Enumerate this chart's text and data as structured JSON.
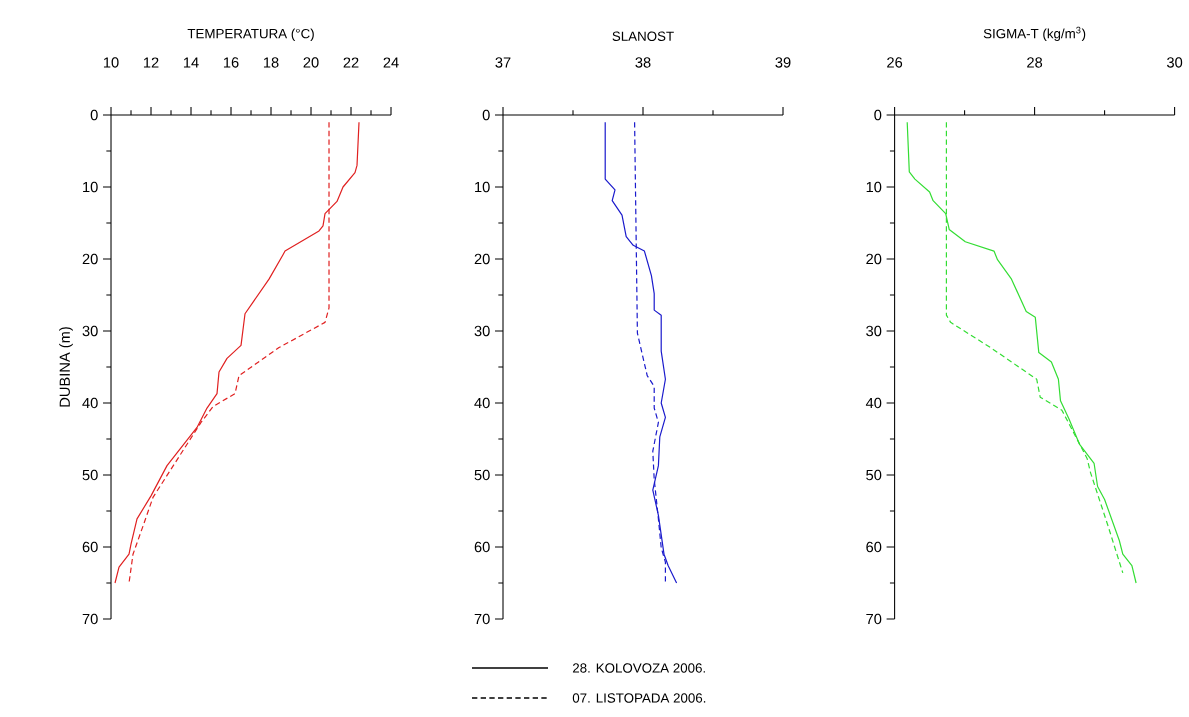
{
  "chart_data": [
    {
      "type": "line",
      "title": "TEMPERATURA (°C)",
      "ylabel": "DUBINA (m)",
      "orientation": "horizontal",
      "legend": "bottom",
      "xlim": [
        10,
        24
      ],
      "xticks": [
        10,
        {
          "value": 11,
          "label": null
        },
        12,
        {
          "value": 13,
          "label": null
        },
        14,
        {
          "value": 15,
          "label": null
        },
        16,
        {
          "value": 17,
          "label": null
        },
        18,
        {
          "value": 19,
          "label": null
        },
        20,
        {
          "value": 21,
          "label": null
        },
        22,
        {
          "value": 23,
          "label": null
        },
        24
      ],
      "ylim": [
        70,
        0
      ],
      "yticks": [
        0,
        {
          "value": 5,
          "label": null
        },
        10,
        {
          "value": 15,
          "label": null
        },
        20,
        {
          "value": 25,
          "label": null
        },
        30,
        {
          "value": 35,
          "label": null
        },
        40,
        {
          "value": 45,
          "label": null
        },
        50,
        {
          "value": 55,
          "label": null
        },
        60,
        {
          "value": 65,
          "label": null
        },
        70
      ],
      "series": [
        {
          "name": "28. KOLOVOZA 2006.",
          "color": "#e02020",
          "line_style": "solid",
          "x": [
            1,
            7,
            8,
            10,
            12,
            13.7,
            15.4,
            16.1,
            18.9,
            19.4,
            22.8,
            27.6,
            32,
            33.8,
            35.7,
            38.7,
            40.7,
            43.4,
            48.7,
            52.9,
            56.1,
            59.6,
            61,
            62.8,
            65
          ],
          "values": [
            22.4,
            22.3,
            22.2,
            21.6,
            21.3,
            20.7,
            20.6,
            20.4,
            18.7,
            18.6,
            17.9,
            16.7,
            16.5,
            15.8,
            15.4,
            15.3,
            14.8,
            14.3,
            12.8,
            12.0,
            11.3,
            11.0,
            10.9,
            10.4,
            10.2
          ]
        },
        {
          "name": "07. LISTOPADA 2006.",
          "color": "#e02020",
          "line_style": "dashed",
          "x": [
            1,
            26.8,
            28.8,
            32.3,
            36.2,
            38.7,
            40.5,
            42.7,
            49.2,
            53.1,
            57.1,
            61,
            65
          ],
          "values": [
            20.9,
            20.9,
            20.7,
            18.4,
            16.4,
            16.2,
            15.1,
            14.5,
            13.0,
            12.1,
            11.6,
            11.1,
            10.9
          ]
        }
      ]
    },
    {
      "type": "line",
      "title": "SLANOST",
      "orientation": "horizontal",
      "xlim": [
        37,
        39
      ],
      "xticks": [
        37,
        {
          "value": 37.5,
          "label": null
        },
        38,
        {
          "value": 38.5,
          "label": null
        },
        39
      ],
      "ylim": [
        70,
        0
      ],
      "yticks": [
        0,
        {
          "value": 5,
          "label": null
        },
        10,
        {
          "value": 15,
          "label": null
        },
        20,
        {
          "value": 25,
          "label": null
        },
        30,
        {
          "value": 35,
          "label": null
        },
        40,
        {
          "value": 45,
          "label": null
        },
        50,
        {
          "value": 55,
          "label": null
        },
        60,
        {
          "value": 65,
          "label": null
        },
        70
      ],
      "series": [
        {
          "color": "#1a1acc",
          "line_style": "solid",
          "x": [
            1,
            8.9,
            10.4,
            11.9,
            13.9,
            16.9,
            18.1,
            18.9,
            22.3,
            24.8,
            27.1,
            27.8,
            32.8,
            36.7,
            40,
            42,
            44.7,
            48.7,
            52.1,
            55.6,
            61,
            62.6,
            65
          ],
          "values": [
            37.73,
            37.73,
            37.8,
            37.78,
            37.85,
            37.88,
            37.93,
            38.01,
            38.06,
            38.08,
            38.08,
            38.13,
            38.13,
            38.16,
            38.13,
            38.16,
            38.12,
            38.11,
            38.07,
            38.11,
            38.15,
            38.18,
            38.24
          ]
        },
        {
          "color": "#1a1acc",
          "line_style": "dashed",
          "x": [
            1,
            30.3,
            32,
            36.2,
            37.7,
            40.7,
            42.7,
            46.7,
            50.6,
            56.1,
            60.1,
            62.1,
            65
          ],
          "values": [
            37.94,
            37.96,
            37.98,
            38.03,
            38.08,
            38.08,
            38.11,
            38.07,
            38.08,
            38.11,
            38.13,
            38.16,
            38.16
          ]
        }
      ]
    },
    {
      "type": "line",
      "title": "SIGMA-T (kg/m$^{3}$)",
      "orientation": "horizontal",
      "xlim": [
        26,
        30
      ],
      "xticks": [
        26,
        {
          "value": 27,
          "label": null
        },
        28,
        {
          "value": 29,
          "label": null
        },
        30
      ],
      "ylim": [
        70,
        0
      ],
      "yticks": [
        0,
        {
          "value": 5,
          "label": null
        },
        10,
        {
          "value": 15,
          "label": null
        },
        20,
        {
          "value": 25,
          "label": null
        },
        30,
        {
          "value": 35,
          "label": null
        },
        40,
        {
          "value": 45,
          "label": null
        },
        50,
        {
          "value": 55,
          "label": null
        },
        60,
        {
          "value": 65,
          "label": null
        },
        70
      ],
      "series": [
        {
          "color": "#33dd33",
          "line_style": "solid",
          "x": [
            1,
            7.9,
            8.9,
            10.7,
            11.9,
            13.7,
            15.9,
            17.6,
            18.9,
            20.1,
            22.8,
            27.3,
            28.1,
            33,
            34.3,
            36.7,
            39.7,
            42.2,
            45.7,
            48.4,
            51.6,
            53.4,
            59.1,
            61,
            62.6,
            65
          ],
          "values": [
            26.18,
            26.21,
            26.29,
            26.5,
            26.55,
            26.73,
            26.78,
            27.01,
            27.42,
            27.47,
            27.67,
            27.88,
            28.01,
            28.06,
            28.24,
            28.34,
            28.37,
            28.49,
            28.64,
            28.85,
            28.9,
            29.0,
            29.21,
            29.26,
            29.39,
            29.45
          ]
        },
        {
          "color": "#33dd33",
          "line_style": "dashed",
          "x": [
            1,
            27.8,
            28.8,
            32.3,
            36.7,
            39.2,
            41,
            47.7,
            49.7,
            57.1,
            63.6
          ],
          "values": [
            26.74,
            26.74,
            26.8,
            27.37,
            28.03,
            28.08,
            28.39,
            28.75,
            28.8,
            29.05,
            29.26
          ]
        }
      ]
    }
  ]
}
